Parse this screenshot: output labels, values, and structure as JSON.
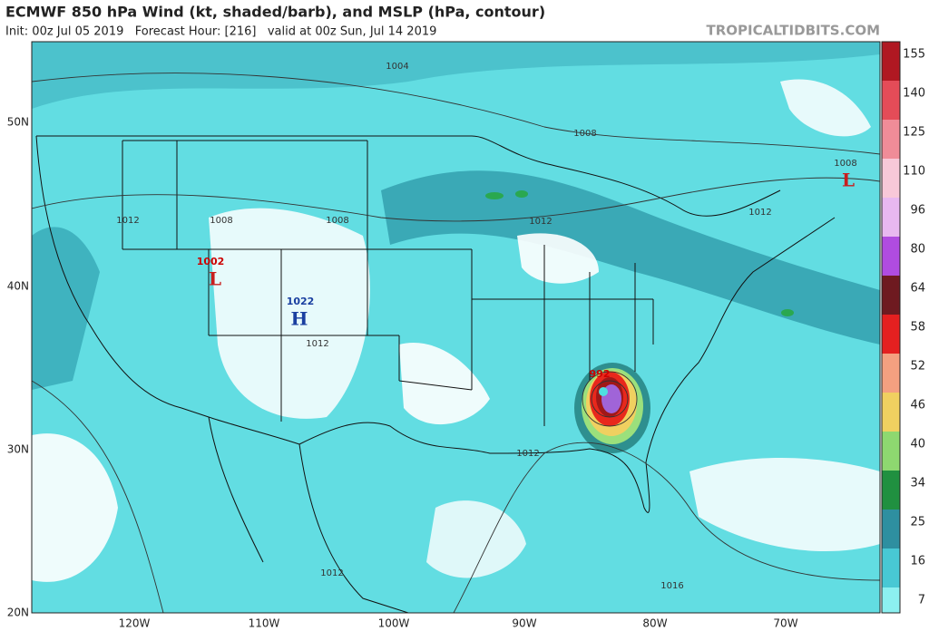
{
  "header": {
    "title": "ECMWF 850 hPa Wind (kt, shaded/barb), and MSLP (hPa, contour)",
    "subtitle": "Init: 00z Jul 05 2019   Forecast Hour: [216]   valid at 00z Sun, Jul 14 2019",
    "watermark": "TROPICALTIDBITS.COM"
  },
  "colorbar": {
    "labels": [
      "155",
      "140",
      "125",
      "110",
      "96",
      "80",
      "64",
      "58",
      "52",
      "46",
      "40",
      "34",
      "25",
      "16",
      "7"
    ]
  },
  "axes": {
    "lon_labels": [
      "120W",
      "110W",
      "100W",
      "90W",
      "80W",
      "70W"
    ],
    "lat_labels": [
      "50N",
      "40N",
      "30N",
      "20N"
    ]
  },
  "contours": [
    {
      "label": "1004"
    },
    {
      "label": "1008"
    },
    {
      "label": "1012"
    },
    {
      "label": "1008"
    },
    {
      "label": "1008"
    },
    {
      "label": "1012"
    },
    {
      "label": "1008"
    },
    {
      "label": "1012"
    },
    {
      "label": "1012"
    },
    {
      "label": "1012"
    },
    {
      "label": "1012"
    },
    {
      "label": "1016"
    },
    {
      "label": "992"
    }
  ],
  "centers": [
    {
      "label": "1002",
      "symbol": "L"
    },
    {
      "label": "1022",
      "symbol": "H"
    },
    {
      "label": "1008",
      "symbol": "L"
    }
  ]
}
